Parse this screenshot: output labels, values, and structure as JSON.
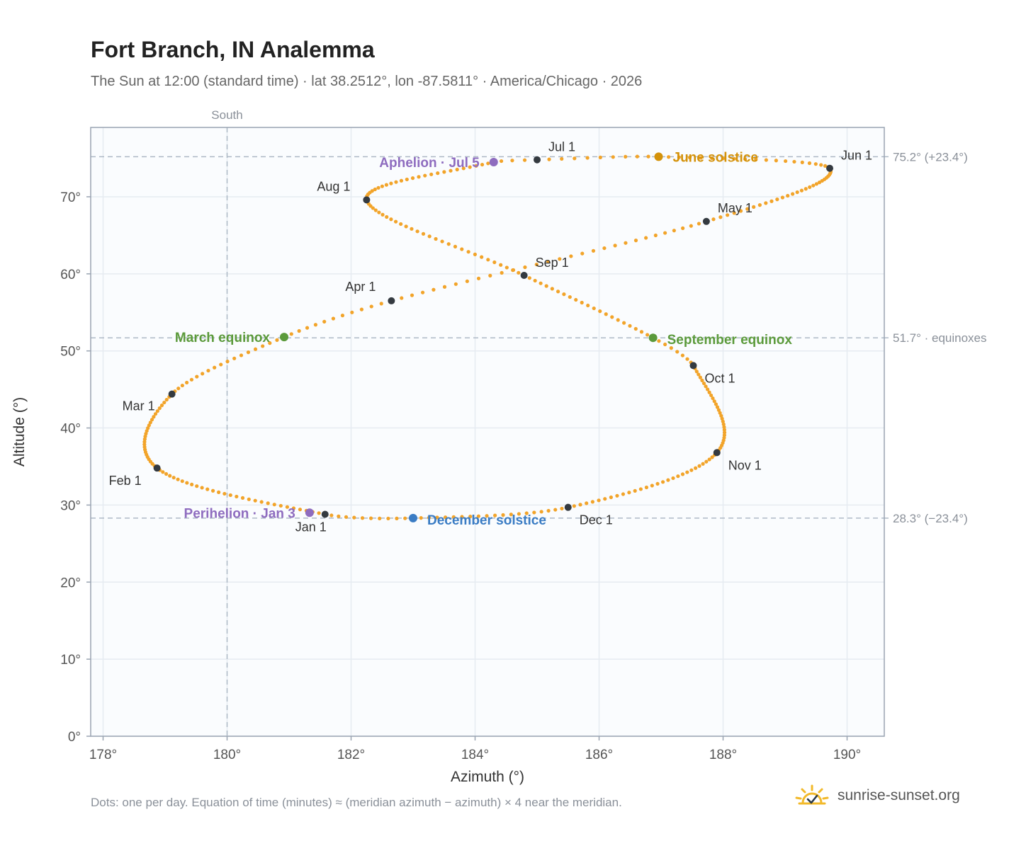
{
  "header": {
    "title": "Fort Branch, IN Analemma",
    "subtitle": "The Sun at 12:00 (standard time) · lat 38.2512°, lon -87.5811° · America/Chicago · 2026"
  },
  "footer": {
    "note": "Dots: one per day. Equation of time (minutes) ≈ (meridian azimuth − azimuth) × 4 near the meridian.",
    "brand": "sunrise-sunset.org"
  },
  "chart_data": {
    "type": "scatter",
    "xlabel": "Azimuth (°)",
    "ylabel": "Altitude (°)",
    "xlim": [
      177.8,
      190.6
    ],
    "ylim": [
      0,
      79
    ],
    "grid": true,
    "x_ticks": [
      178,
      180,
      182,
      184,
      186,
      188,
      190
    ],
    "x_tick_labels": [
      "178°",
      "180°",
      "182°",
      "184°",
      "186°",
      "188°",
      "190°"
    ],
    "y_ticks": [
      0,
      10,
      20,
      30,
      40,
      50,
      60,
      70
    ],
    "y_tick_labels": [
      "0°",
      "10°",
      "20°",
      "30°",
      "40°",
      "50°",
      "60°",
      "70°"
    ],
    "reference_lines": {
      "vertical": [
        {
          "x": 180,
          "label": "South"
        }
      ],
      "horizontal": [
        {
          "y": 75.2,
          "label": "75.2° (+23.4°)"
        },
        {
          "y": 51.7,
          "label": "51.7° · equinoxes"
        },
        {
          "y": 28.3,
          "label": "28.3° (−23.4°)"
        }
      ]
    },
    "analemma_keypoints": [
      {
        "day": 0,
        "az": 181.58,
        "alt": 28.8
      },
      {
        "day": 31,
        "az": 178.87,
        "alt": 34.8
      },
      {
        "day": 59,
        "az": 179.11,
        "alt": 44.4
      },
      {
        "day": 78,
        "az": 180.92,
        "alt": 51.8
      },
      {
        "day": 90,
        "az": 182.65,
        "alt": 56.5
      },
      {
        "day": 120,
        "az": 187.73,
        "alt": 66.8
      },
      {
        "day": 151,
        "az": 189.72,
        "alt": 73.7
      },
      {
        "day": 171,
        "az": 186.96,
        "alt": 75.2
      },
      {
        "day": 181,
        "az": 185.0,
        "alt": 74.8
      },
      {
        "day": 185,
        "az": 184.3,
        "alt": 74.5
      },
      {
        "day": 212,
        "az": 182.25,
        "alt": 69.6
      },
      {
        "day": 243,
        "az": 184.79,
        "alt": 59.8
      },
      {
        "day": 265,
        "az": 186.87,
        "alt": 51.7
      },
      {
        "day": 273,
        "az": 187.52,
        "alt": 48.1
      },
      {
        "day": 304,
        "az": 187.9,
        "alt": 36.8
      },
      {
        "day": 334,
        "az": 185.5,
        "alt": 29.7
      },
      {
        "day": 354,
        "az": 183.0,
        "alt": 28.3
      },
      {
        "day": 365,
        "az": 181.58,
        "alt": 28.8
      }
    ],
    "month_markers": [
      {
        "label": "Jan 1",
        "az": 181.58,
        "alt": 28.8
      },
      {
        "label": "Feb 1",
        "az": 178.87,
        "alt": 34.8
      },
      {
        "label": "Mar 1",
        "az": 179.11,
        "alt": 44.4
      },
      {
        "label": "Apr 1",
        "az": 182.65,
        "alt": 56.5
      },
      {
        "label": "May 1",
        "az": 187.73,
        "alt": 66.8
      },
      {
        "label": "Jun 1",
        "az": 189.72,
        "alt": 73.7
      },
      {
        "label": "Jul 1",
        "az": 185.0,
        "alt": 74.8
      },
      {
        "label": "Aug 1",
        "az": 182.25,
        "alt": 69.6
      },
      {
        "label": "Sep 1",
        "az": 184.79,
        "alt": 59.8
      },
      {
        "label": "Oct 1",
        "az": 187.52,
        "alt": 48.1
      },
      {
        "label": "Nov 1",
        "az": 187.9,
        "alt": 36.8
      },
      {
        "label": "Dec 1",
        "az": 185.5,
        "alt": 29.7
      }
    ],
    "events": [
      {
        "label": "June solstice",
        "az": 186.96,
        "alt": 75.2,
        "color": "#d4920a"
      },
      {
        "label": "March equinox",
        "az": 180.92,
        "alt": 51.8,
        "color": "#5b9a3b"
      },
      {
        "label": "September equinox",
        "az": 186.87,
        "alt": 51.7,
        "color": "#5b9a3b"
      },
      {
        "label": "December solstice",
        "az": 183.0,
        "alt": 28.3,
        "color": "#3a7cc4"
      },
      {
        "label": "Aphelion · Jul 5",
        "az": 184.3,
        "alt": 74.5,
        "color": "#8e6cbf"
      },
      {
        "label": "Perihelion · Jan 3",
        "az": 181.33,
        "alt": 29.0,
        "color": "#8e6cbf"
      }
    ],
    "colors": {
      "curve": "#f2a42a",
      "marker": "#343a40",
      "plot_bg": "#fafcfe",
      "grid": "#e6ebf1",
      "frame": "#9aa4b2",
      "reference": "#aeb9c6"
    }
  }
}
